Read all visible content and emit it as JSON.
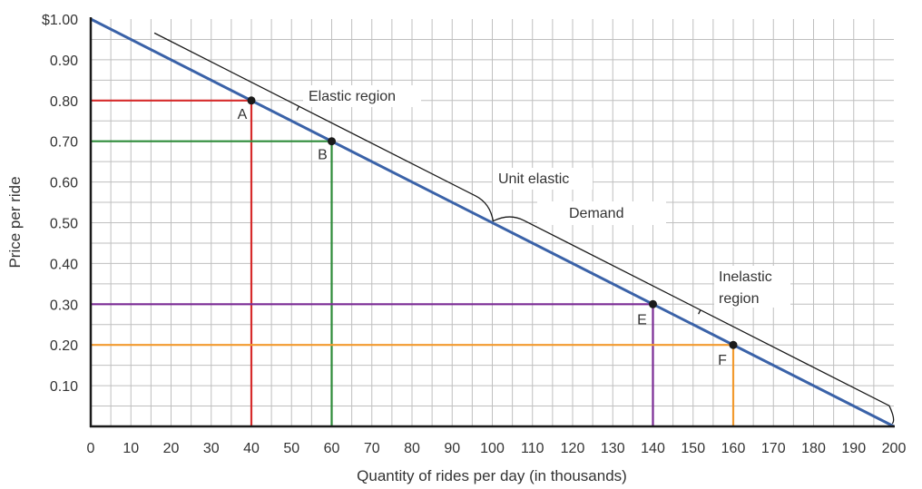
{
  "chart_data": {
    "type": "line",
    "title": "",
    "xlabel": "Quantity of rides per day (in thousands)",
    "ylabel": "Price per ride",
    "xlim": [
      0,
      200
    ],
    "ylim": [
      0,
      1
    ],
    "grid": true,
    "x_ticks": [
      0,
      10,
      20,
      30,
      40,
      50,
      60,
      70,
      80,
      90,
      100,
      110,
      120,
      130,
      140,
      150,
      160,
      170,
      180,
      190,
      200
    ],
    "x_tick_labels": [
      "0",
      "10",
      "20",
      "30",
      "40",
      "50",
      "60",
      "70",
      "80",
      "90",
      "100",
      "110",
      "120",
      "130",
      "140",
      "150",
      "160",
      "170",
      "180",
      "190",
      "200"
    ],
    "y_ticks": [
      0.1,
      0.2,
      0.3,
      0.4,
      0.5,
      0.6,
      0.7,
      0.8,
      0.9,
      1.0
    ],
    "y_tick_labels": [
      "0.10",
      "0.20",
      "0.30",
      "0.40",
      "0.50",
      "0.60",
      "0.70",
      "0.80",
      "0.90",
      "$1.00"
    ],
    "series": [
      {
        "name": "Demand",
        "x": [
          0,
          200
        ],
        "y": [
          1.0,
          0
        ]
      }
    ],
    "points": [
      {
        "label": "A",
        "x": 40,
        "y": 0.8,
        "color": "#d62b2b"
      },
      {
        "label": "B",
        "x": 60,
        "y": 0.7,
        "color": "#2e8b3a"
      },
      {
        "label": "E",
        "x": 140,
        "y": 0.3,
        "color": "#7b2c95"
      },
      {
        "label": "F",
        "x": 160,
        "y": 0.2,
        "color": "#f29a2e"
      }
    ],
    "annotations": {
      "elastic": "Elastic region",
      "unit": "Unit elastic",
      "demand": "Demand",
      "inelastic_1": "Inelastic",
      "inelastic_2": "region"
    },
    "colors": {
      "demand": "#3a62a8",
      "grid": "#bfbfbf",
      "axis": "#1a1a1a",
      "bracket": "#1a1a1a"
    }
  }
}
